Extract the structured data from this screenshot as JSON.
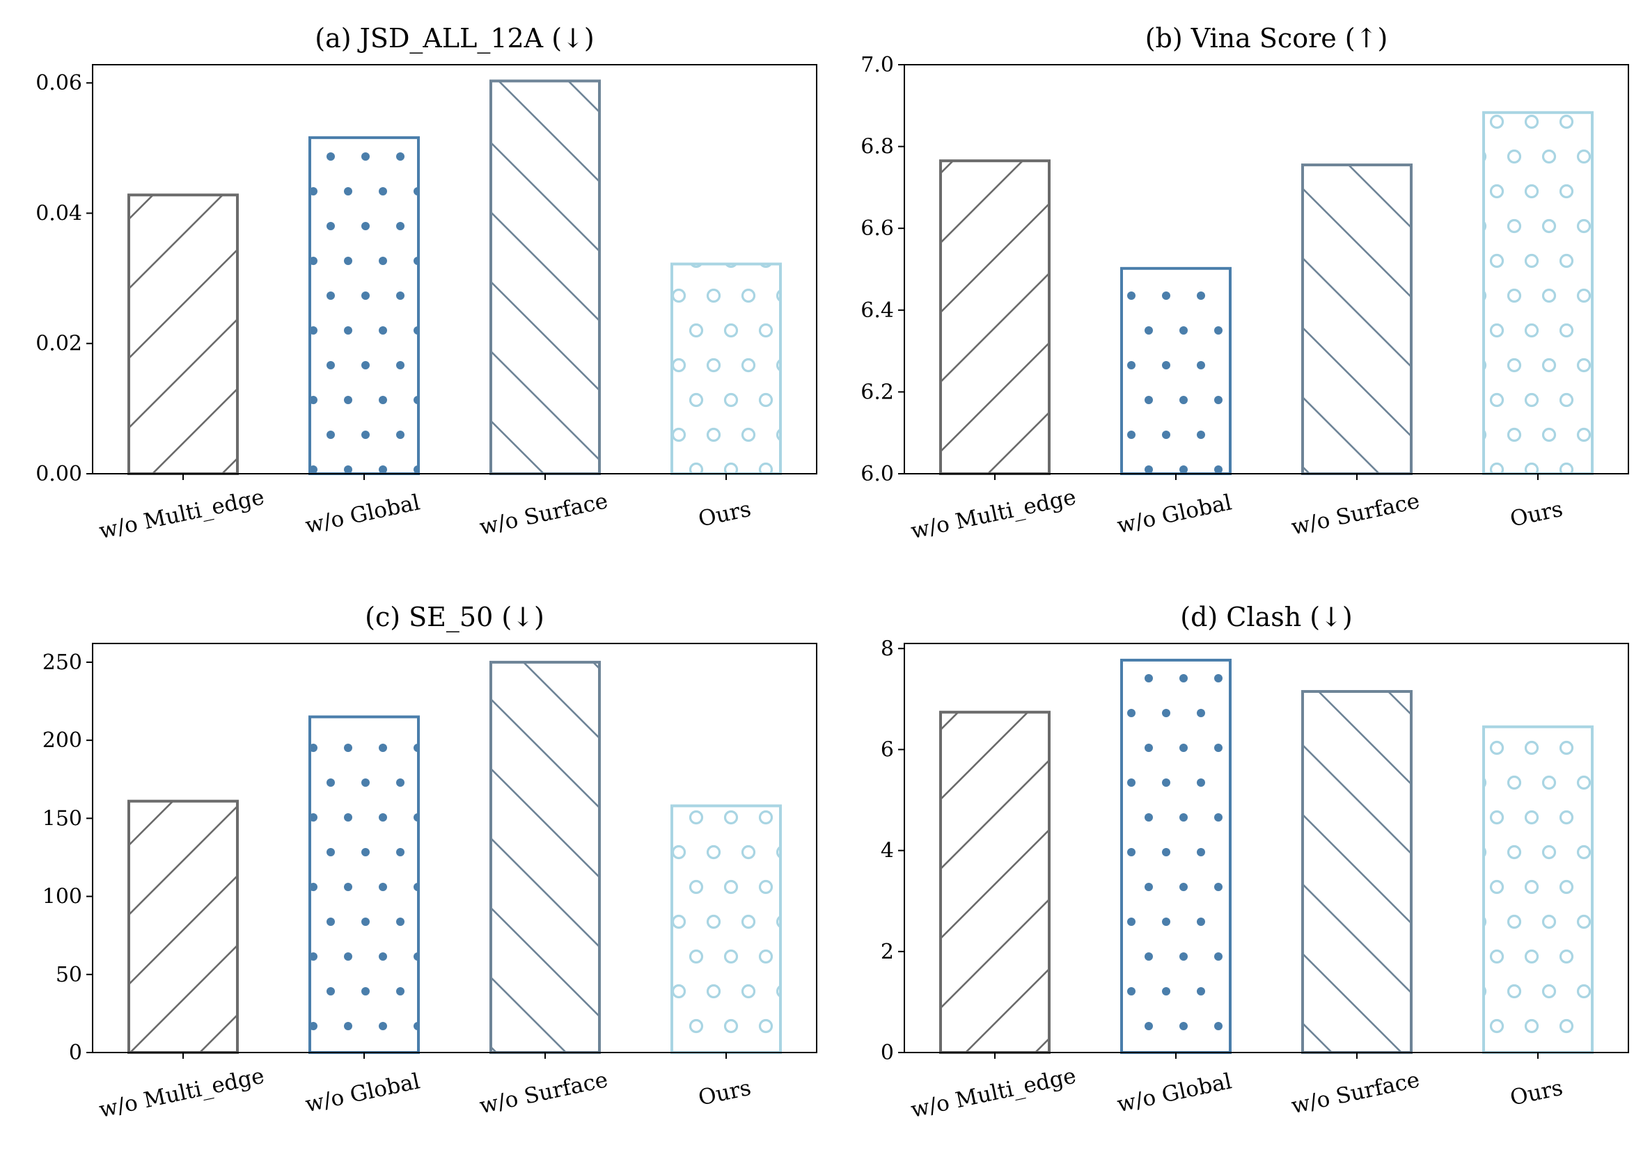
{
  "chart_data": [
    {
      "type": "bar",
      "title": "(a) JSD_ALL_12A (↓)",
      "categories": [
        "w/o Multi_edge",
        "w/o Global",
        "w/o Surface",
        "Ours"
      ],
      "values": [
        0.0428,
        0.0516,
        0.0603,
        0.0322
      ],
      "ylim": [
        0,
        0.0628
      ],
      "yticks": [
        "0.00",
        "0.02",
        "0.04",
        "0.06"
      ],
      "ytick_values": [
        0,
        0.02,
        0.04,
        0.06
      ]
    },
    {
      "type": "bar",
      "title": "(b) Vina Score (↑)",
      "categories": [
        "w/o Multi_edge",
        "w/o Global",
        "w/o Surface",
        "Ours"
      ],
      "values": [
        6.765,
        6.502,
        6.755,
        6.883
      ],
      "ylim": [
        6.0,
        7.0
      ],
      "yticks": [
        "6.0",
        "6.2",
        "6.4",
        "6.6",
        "6.8",
        "7.0"
      ],
      "ytick_values": [
        6.0,
        6.2,
        6.4,
        6.6,
        6.8,
        7.0
      ]
    },
    {
      "type": "bar",
      "title": "(c) SE_50 (↓)",
      "categories": [
        "w/o Multi_edge",
        "w/o Global",
        "w/o Surface",
        "Ours"
      ],
      "values": [
        161,
        215,
        250,
        158
      ],
      "ylim": [
        0,
        262
      ],
      "yticks": [
        "0",
        "50",
        "100",
        "150",
        "200",
        "250"
      ],
      "ytick_values": [
        0,
        50,
        100,
        150,
        200,
        250
      ]
    },
    {
      "type": "bar",
      "title": "(d) Clash (↓)",
      "categories": [
        "w/o Multi_edge",
        "w/o Global",
        "w/o Surface",
        "Ours"
      ],
      "values": [
        6.74,
        7.77,
        7.15,
        6.45
      ],
      "ylim": [
        0,
        8.1
      ],
      "yticks": [
        "0",
        "2",
        "4",
        "6",
        "8"
      ],
      "ytick_values": [
        0,
        2,
        4,
        6,
        8
      ]
    }
  ],
  "colors": [
    "#6b6b6b",
    "#4a7eab",
    "#6e8497",
    "#a9d5e3"
  ],
  "hatches": [
    "forward-slash",
    "dots",
    "back-slash",
    "circles"
  ],
  "grid": false,
  "legend": "none"
}
